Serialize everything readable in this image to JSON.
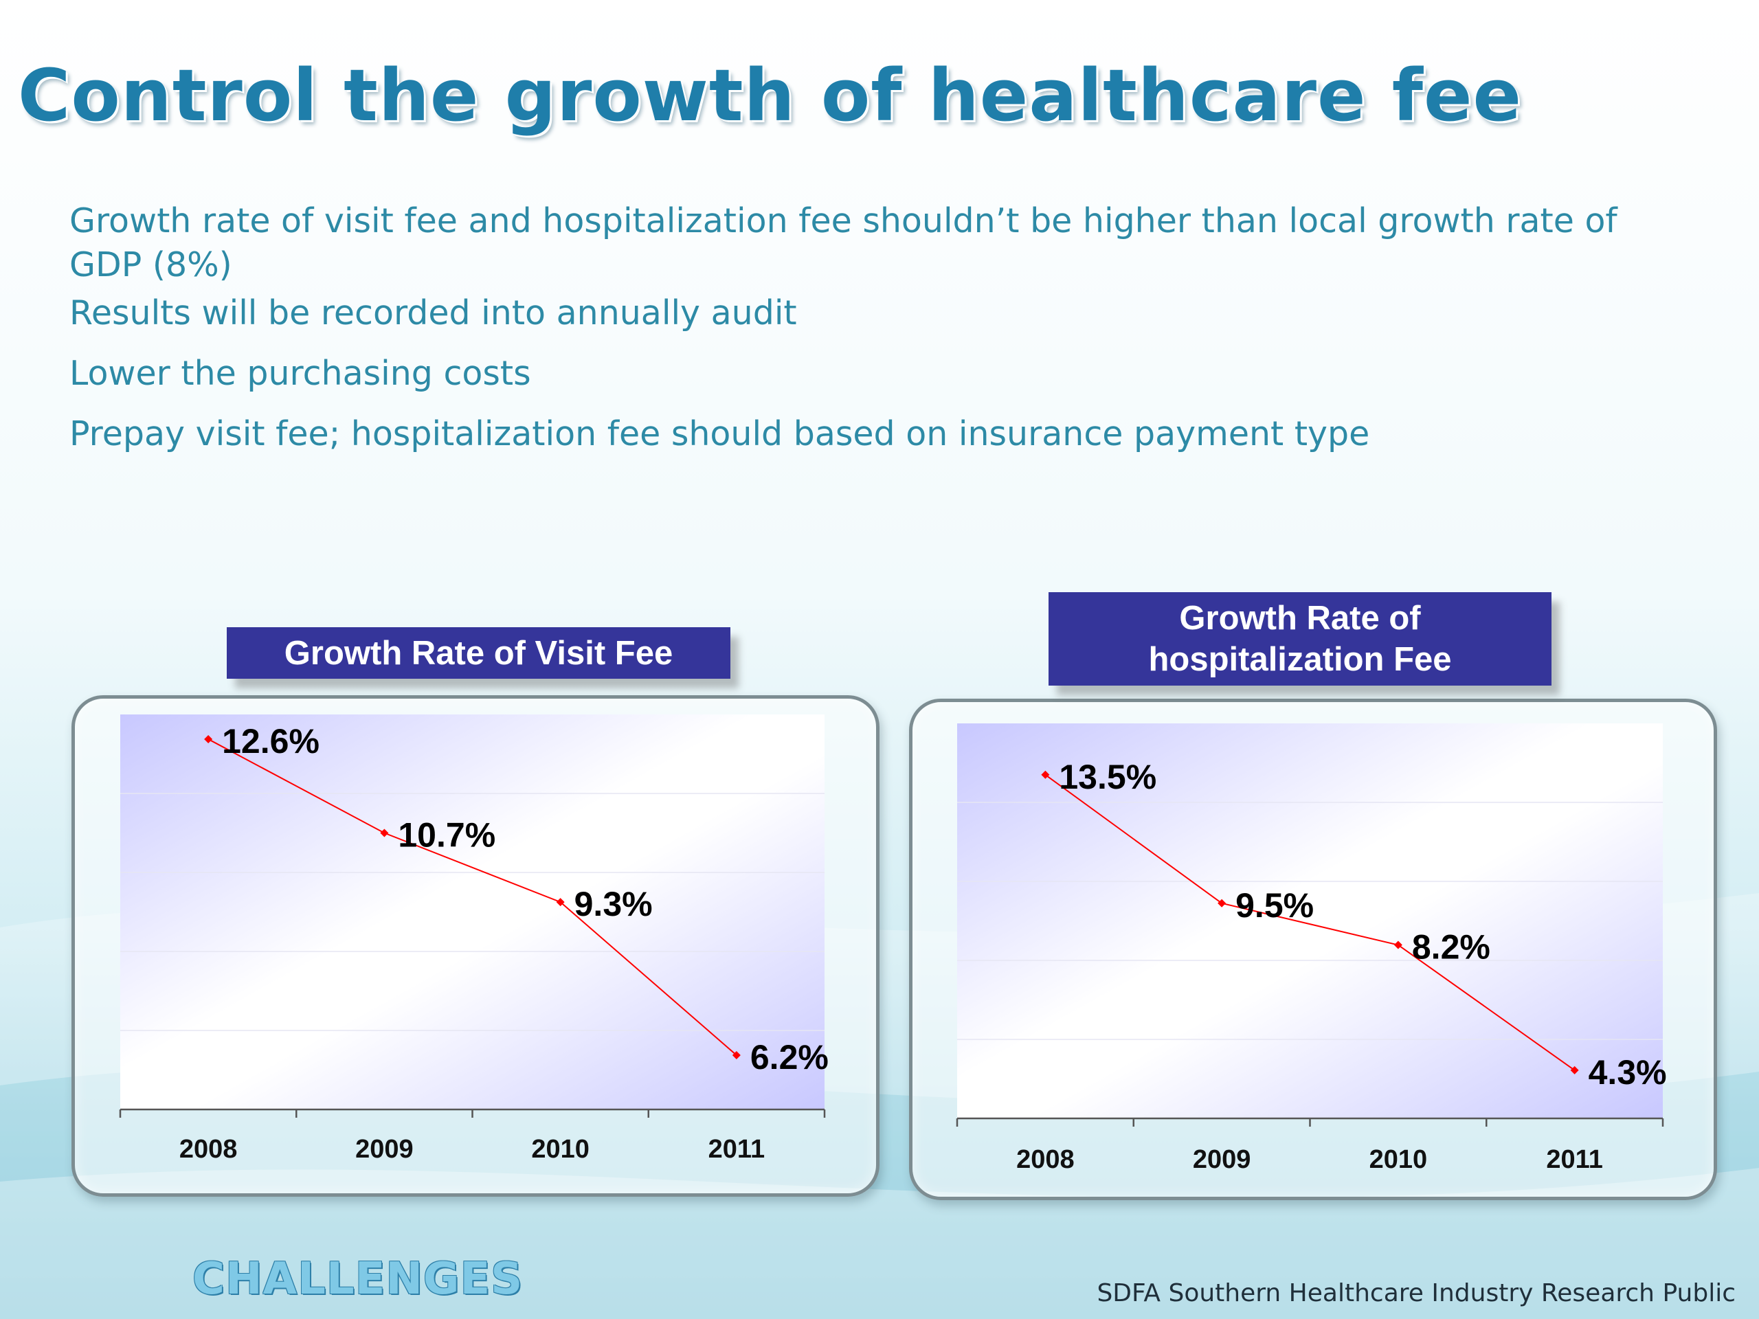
{
  "slide": {
    "title": "Control the growth of healthcare fee",
    "bullets": [
      "Growth rate of visit fee and hospitalization fee shouldn’t be higher than local growth rate of GDP (8%)",
      "Results will be recorded into annually audit",
      "Lower the purchasing costs",
      "Prepay visit fee; hospitalization fee should based on insurance payment type"
    ],
    "footer_left": "CHALLENGES",
    "footer_right": "SDFA Southern Healthcare Industry Research Public"
  },
  "colors": {
    "accent": "#1f7eaa",
    "title_box": "#35359a",
    "series_line": "#ff0000",
    "bullet_text": "#2d8aa6"
  },
  "chart_data": [
    {
      "type": "line",
      "title": "Growth Rate of Visit Fee",
      "categories": [
        "2008",
        "2009",
        "2010",
        "2011"
      ],
      "series": [
        {
          "values": [
            12.6,
            10.7,
            9.3,
            6.2
          ],
          "labels": [
            "12.6%",
            "10.7%",
            "9.3%",
            "6.2%"
          ]
        }
      ],
      "ylim": [
        5.1,
        13.1
      ],
      "grid": true,
      "legend": "none"
    },
    {
      "type": "line",
      "title": "Growth Rate of hospitalization Fee",
      "categories": [
        "2008",
        "2009",
        "2010",
        "2011"
      ],
      "series": [
        {
          "values": [
            13.5,
            9.5,
            8.2,
            4.3
          ],
          "labels": [
            "13.5%",
            "9.5%",
            "8.2%",
            "4.3%"
          ]
        }
      ],
      "ylim": [
        2.8,
        15.1
      ],
      "grid": true,
      "legend": "none"
    }
  ]
}
